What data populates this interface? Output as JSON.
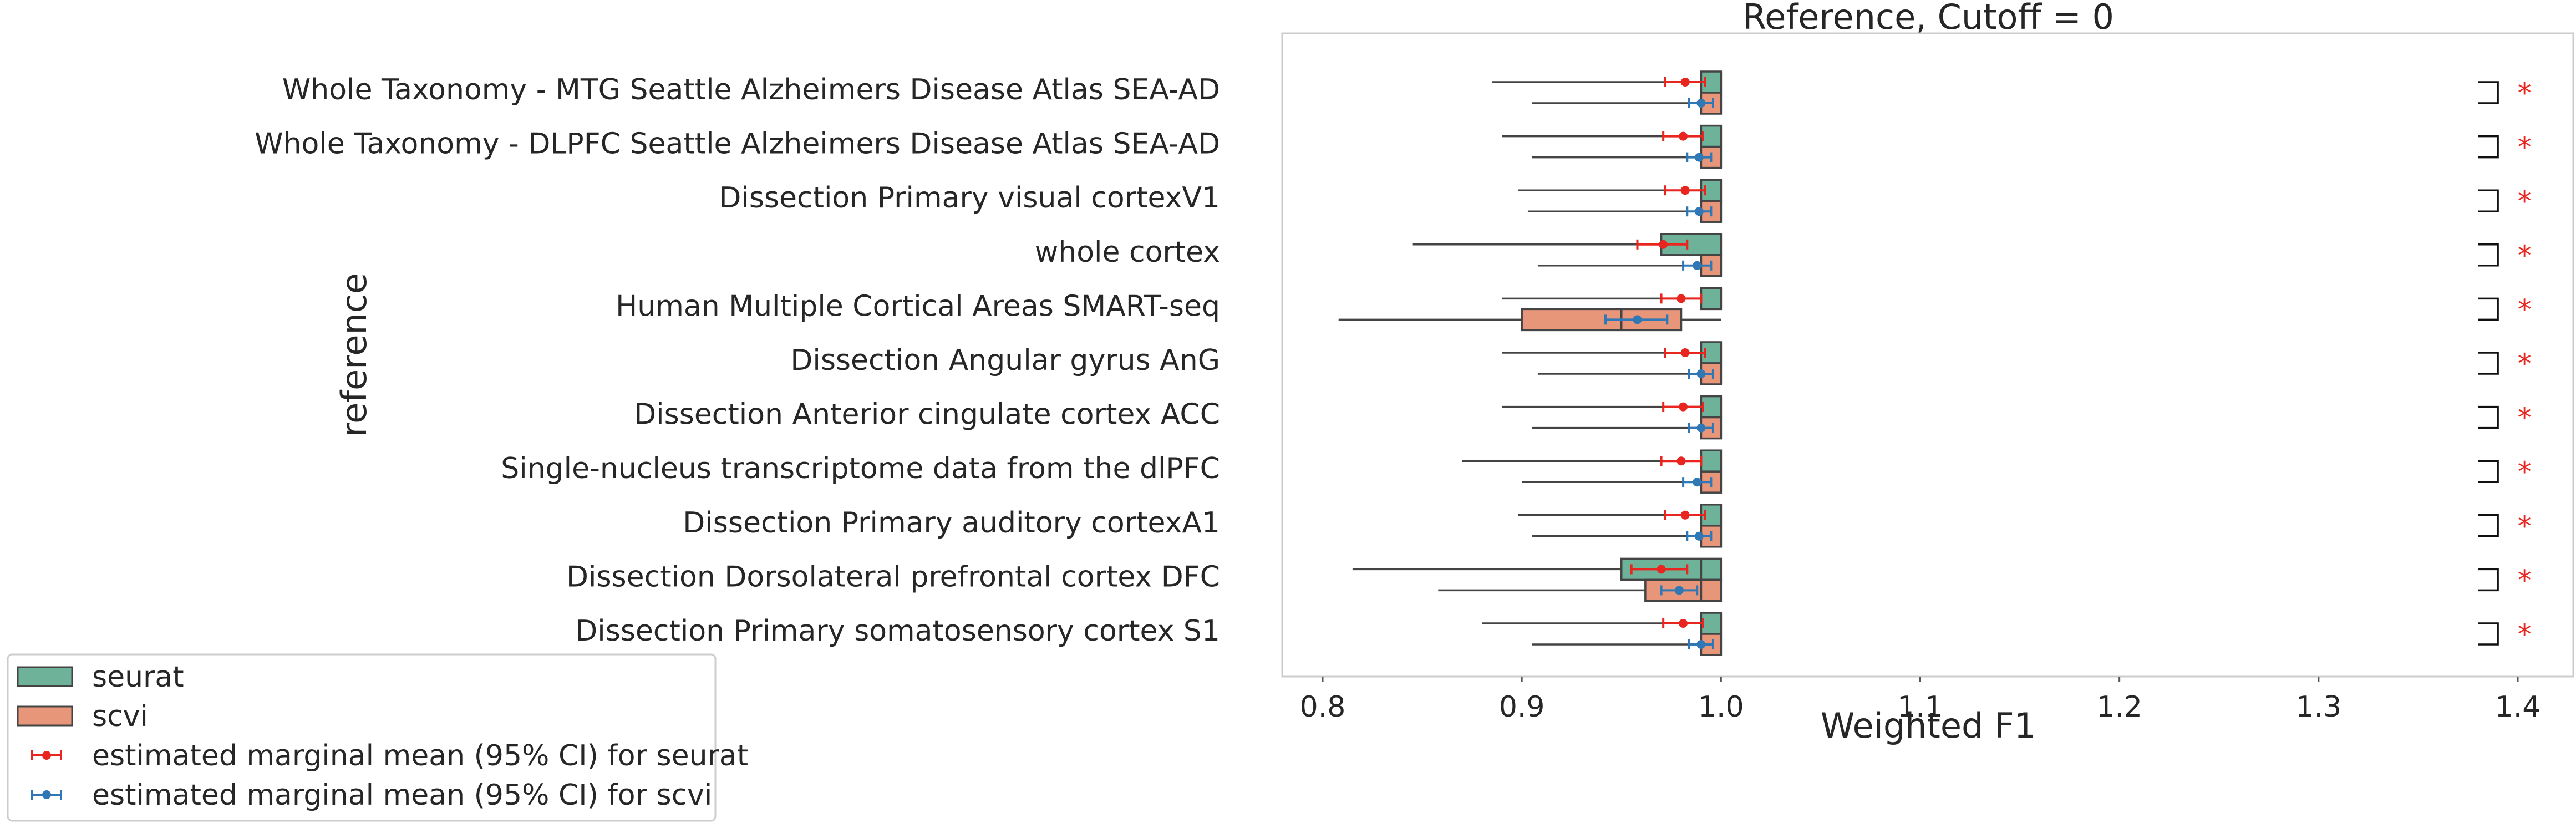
{
  "chart_data": {
    "type": "boxplot",
    "title": "Reference, Cutoff = 0",
    "xlabel": "Weighted F1",
    "ylabel": "reference",
    "xlim": [
      0.77,
      1.43
    ],
    "xticks": [
      0.8,
      0.9,
      1.0,
      1.1,
      1.2,
      1.3,
      1.4
    ],
    "xtick_labels": [
      "0.8",
      "0.9",
      "1.0",
      "1.1",
      "1.2",
      "1.3",
      "1.4"
    ],
    "grid": false,
    "legend_placement": "bottom-left, outside plot",
    "categories": [
      "Whole Taxonomy - MTG Seattle Alzheimers Disease Atlas SEA-AD",
      "Whole Taxonomy - DLPFC Seattle Alzheimers Disease Atlas SEA-AD",
      "Dissection Primary visual cortexV1",
      "whole cortex",
      "Human Multiple Cortical Areas SMART-seq",
      "Dissection Angular gyrus AnG",
      "Dissection Anterior cingulate cortex ACC",
      "Single-nucleus transcriptome data from the dlPFC",
      "Dissection Primary auditory cortexA1",
      "Dissection Dorsolateral prefrontal cortex DFC",
      "Dissection Primary somatosensory cortex S1"
    ],
    "series": [
      {
        "name": "seurat",
        "color": "#6fb29a",
        "boxes": [
          {
            "whislo": 0.885,
            "q1": 0.99,
            "med": 1.0,
            "q3": 1.0,
            "whishi": 1.0
          },
          {
            "whislo": 0.89,
            "q1": 0.99,
            "med": 1.0,
            "q3": 1.0,
            "whishi": 1.0
          },
          {
            "whislo": 0.898,
            "q1": 0.99,
            "med": 1.0,
            "q3": 1.0,
            "whishi": 1.0
          },
          {
            "whislo": 0.845,
            "q1": 0.97,
            "med": 1.0,
            "q3": 1.0,
            "whishi": 1.0
          },
          {
            "whislo": 0.89,
            "q1": 0.99,
            "med": 1.0,
            "q3": 1.0,
            "whishi": 1.0
          },
          {
            "whislo": 0.89,
            "q1": 0.99,
            "med": 1.0,
            "q3": 1.0,
            "whishi": 1.0
          },
          {
            "whislo": 0.89,
            "q1": 0.99,
            "med": 1.0,
            "q3": 1.0,
            "whishi": 1.0
          },
          {
            "whislo": 0.87,
            "q1": 0.99,
            "med": 1.0,
            "q3": 1.0,
            "whishi": 1.0
          },
          {
            "whislo": 0.898,
            "q1": 0.99,
            "med": 1.0,
            "q3": 1.0,
            "whishi": 1.0
          },
          {
            "whislo": 0.815,
            "q1": 0.95,
            "med": 0.99,
            "q3": 1.0,
            "whishi": 1.0
          },
          {
            "whislo": 0.88,
            "q1": 0.99,
            "med": 1.0,
            "q3": 1.0,
            "whishi": 1.0
          }
        ],
        "emm": [
          {
            "mean": 0.982,
            "lo": 0.972,
            "hi": 0.992
          },
          {
            "mean": 0.981,
            "lo": 0.971,
            "hi": 0.991
          },
          {
            "mean": 0.982,
            "lo": 0.972,
            "hi": 0.992
          },
          {
            "mean": 0.971,
            "lo": 0.958,
            "hi": 0.983
          },
          {
            "mean": 0.98,
            "lo": 0.97,
            "hi": 0.99
          },
          {
            "mean": 0.982,
            "lo": 0.972,
            "hi": 0.992
          },
          {
            "mean": 0.981,
            "lo": 0.971,
            "hi": 0.991
          },
          {
            "mean": 0.98,
            "lo": 0.97,
            "hi": 0.99
          },
          {
            "mean": 0.982,
            "lo": 0.972,
            "hi": 0.992
          },
          {
            "mean": 0.97,
            "lo": 0.955,
            "hi": 0.983
          },
          {
            "mean": 0.981,
            "lo": 0.971,
            "hi": 0.991
          }
        ]
      },
      {
        "name": "scvi",
        "color": "#e8967a",
        "boxes": [
          {
            "whislo": 0.905,
            "q1": 0.99,
            "med": 1.0,
            "q3": 1.0,
            "whishi": 1.0
          },
          {
            "whislo": 0.905,
            "q1": 0.99,
            "med": 1.0,
            "q3": 1.0,
            "whishi": 1.0
          },
          {
            "whislo": 0.903,
            "q1": 0.99,
            "med": 1.0,
            "q3": 1.0,
            "whishi": 1.0
          },
          {
            "whislo": 0.908,
            "q1": 0.99,
            "med": 1.0,
            "q3": 1.0,
            "whishi": 1.0
          },
          {
            "whislo": 0.808,
            "q1": 0.9,
            "med": 0.95,
            "q3": 0.98,
            "whishi": 1.0
          },
          {
            "whislo": 0.908,
            "q1": 0.99,
            "med": 1.0,
            "q3": 1.0,
            "whishi": 1.0
          },
          {
            "whislo": 0.905,
            "q1": 0.99,
            "med": 1.0,
            "q3": 1.0,
            "whishi": 1.0
          },
          {
            "whislo": 0.9,
            "q1": 0.99,
            "med": 1.0,
            "q3": 1.0,
            "whishi": 1.0
          },
          {
            "whislo": 0.905,
            "q1": 0.99,
            "med": 1.0,
            "q3": 1.0,
            "whishi": 1.0
          },
          {
            "whislo": 0.858,
            "q1": 0.962,
            "med": 0.99,
            "q3": 1.0,
            "whishi": 1.0
          },
          {
            "whislo": 0.905,
            "q1": 0.99,
            "med": 1.0,
            "q3": 1.0,
            "whishi": 1.0
          }
        ],
        "emm": [
          {
            "mean": 0.99,
            "lo": 0.984,
            "hi": 0.996
          },
          {
            "mean": 0.989,
            "lo": 0.983,
            "hi": 0.995
          },
          {
            "mean": 0.989,
            "lo": 0.983,
            "hi": 0.995
          },
          {
            "mean": 0.988,
            "lo": 0.981,
            "hi": 0.995
          },
          {
            "mean": 0.958,
            "lo": 0.942,
            "hi": 0.973
          },
          {
            "mean": 0.99,
            "lo": 0.984,
            "hi": 0.996
          },
          {
            "mean": 0.99,
            "lo": 0.984,
            "hi": 0.996
          },
          {
            "mean": 0.988,
            "lo": 0.981,
            "hi": 0.995
          },
          {
            "mean": 0.989,
            "lo": 0.983,
            "hi": 0.995
          },
          {
            "mean": 0.979,
            "lo": 0.97,
            "hi": 0.988
          },
          {
            "mean": 0.99,
            "lo": 0.984,
            "hi": 0.996
          }
        ]
      }
    ],
    "significance": [
      "*",
      "*",
      "*",
      "*",
      "*",
      "*",
      "*",
      "*",
      "*",
      "*",
      "*"
    ],
    "legend": [
      {
        "label": "seurat",
        "kind": "patch",
        "color": "#6fb29a"
      },
      {
        "label": "scvi",
        "kind": "patch",
        "color": "#e8967a"
      },
      {
        "label": "estimated marginal mean (95% CI) for seurat",
        "kind": "errorbar",
        "color": "#e8251f"
      },
      {
        "label": "estimated marginal mean (95% CI) for scvi",
        "kind": "errorbar",
        "color": "#2f78b5"
      }
    ],
    "emm_colors": {
      "seurat": "#e8251f",
      "scvi": "#2f78b5"
    },
    "significance_color": "#e8251f"
  }
}
